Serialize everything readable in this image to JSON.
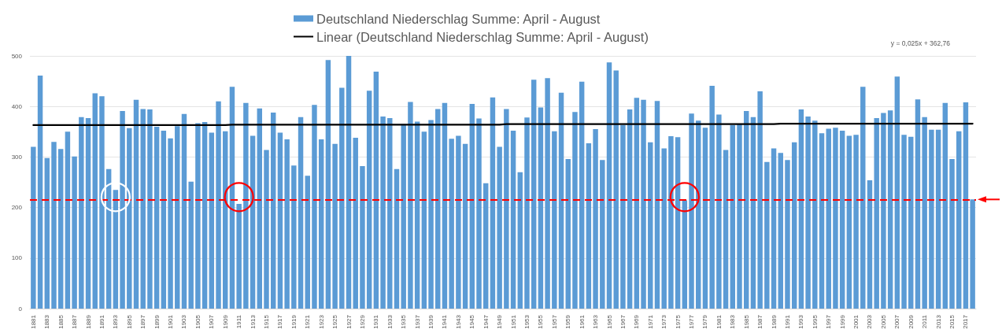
{
  "chart_data": {
    "type": "bar",
    "categories": [
      "1881",
      null,
      "1883",
      null,
      "1885",
      null,
      "1887",
      null,
      "1889",
      null,
      "1891",
      null,
      "1893",
      null,
      "1895",
      null,
      "1897",
      null,
      "1899",
      null,
      "1901",
      null,
      "1903",
      null,
      "1905",
      null,
      "1907",
      null,
      "1909",
      null,
      "1911",
      null,
      "1913",
      null,
      "1915",
      null,
      "1917",
      null,
      "1919",
      null,
      "1921",
      null,
      "1923",
      null,
      "1925",
      null,
      "1927",
      null,
      "1929",
      null,
      "1931",
      null,
      "1933",
      null,
      "1935",
      null,
      "1937",
      null,
      "1939",
      null,
      "1941",
      null,
      "1943",
      null,
      "1945",
      null,
      "1947",
      null,
      "1949",
      null,
      "1951",
      null,
      "1953",
      null,
      "1955",
      null,
      "1957",
      null,
      "1959",
      null,
      "1961",
      null,
      "1963",
      null,
      "1965",
      null,
      "1967",
      null,
      "1969",
      null,
      "1971",
      null,
      "1973",
      null,
      "1975",
      null,
      "1977",
      null,
      "1979",
      null,
      "1981",
      null,
      "1983",
      null,
      "1985",
      null,
      "1987",
      null,
      "1989",
      null,
      "1991",
      null,
      "1993",
      null,
      "1995",
      null,
      "1997",
      null,
      "1999",
      null,
      "2001",
      null,
      "2003",
      null,
      "2005",
      null,
      "2007",
      null,
      "2009",
      null,
      "2011",
      null,
      "2013",
      null,
      "2015",
      null,
      "2017",
      null
    ],
    "series": [
      {
        "name": "Deutschland Niederschlag Summe: April - August",
        "color": "#5b9bd5",
        "values": [
          320,
          461,
          298,
          330,
          316,
          350,
          301,
          379,
          377,
          426,
          420,
          276,
          235,
          391,
          357,
          413,
          395,
          394,
          360,
          352,
          337,
          361,
          385,
          251,
          367,
          369,
          348,
          410,
          351,
          439,
          207,
          407,
          342,
          396,
          314,
          388,
          348,
          335,
          283,
          379,
          263,
          403,
          335,
          492,
          326,
          437,
          500,
          338,
          282,
          431,
          469,
          380,
          377,
          276,
          365,
          409,
          370,
          350,
          373,
          395,
          407,
          336,
          342,
          326,
          405,
          376,
          248,
          418,
          320,
          395,
          352,
          270,
          378,
          453,
          398,
          456,
          351,
          427,
          296,
          389,
          449,
          327,
          355,
          294,
          487,
          471,
          363,
          394,
          417,
          413,
          329,
          411,
          317,
          341,
          339,
          214,
          386,
          372,
          358,
          441,
          384,
          314,
          363,
          366,
          391,
          379,
          430,
          290,
          317,
          308,
          294,
          329,
          394,
          380,
          372,
          347,
          356,
          358,
          352,
          342,
          344,
          439,
          254,
          377,
          387,
          392,
          459,
          344,
          340,
          414,
          379,
          354,
          354,
          407,
          296,
          351,
          408,
          216
        ]
      },
      {
        "name": "Linear (Deutschland Niederschlag Summe: April - August)",
        "type": "line",
        "color": "#000000",
        "values": [
          363,
          363,
          363,
          363,
          363,
          363,
          363,
          363,
          363,
          363,
          363,
          363,
          363,
          363,
          363,
          363,
          363,
          363,
          363,
          363,
          363,
          363,
          363,
          363,
          363,
          363,
          363,
          363,
          363,
          364,
          364,
          364,
          364,
          364,
          364,
          364,
          364,
          364,
          364,
          364,
          364,
          364,
          364,
          364,
          364,
          364,
          364,
          364,
          364,
          364,
          364,
          364,
          364,
          364,
          364,
          364,
          364,
          364,
          364,
          364,
          364,
          364,
          364,
          364,
          364,
          364,
          364,
          364,
          364,
          365,
          365,
          365,
          365,
          365,
          365,
          365,
          365,
          365,
          365,
          365,
          365,
          365,
          365,
          365,
          365,
          365,
          365,
          365,
          365,
          365,
          365,
          365,
          365,
          365,
          365,
          365,
          365,
          365,
          365,
          365,
          365,
          365,
          365,
          365,
          365,
          365,
          365,
          365,
          365,
          366,
          366,
          366,
          366,
          366,
          366,
          366,
          366,
          366,
          366,
          366,
          366,
          366,
          366,
          366,
          366,
          366,
          366,
          366,
          366,
          366,
          366,
          366,
          366,
          366,
          366,
          366,
          366,
          366
        ]
      }
    ],
    "ylim": [
      0,
      500
    ],
    "yticks": [
      0,
      100,
      200,
      300,
      400,
      500
    ],
    "grid": "y",
    "legend": "top",
    "marker": "none",
    "ref_lines": [
      {
        "axis": "y",
        "value": 216,
        "color": "#ff0000",
        "line_style": "dashed"
      }
    ],
    "annotations": [
      "y = 0,025x + 362,76"
    ]
  }
}
